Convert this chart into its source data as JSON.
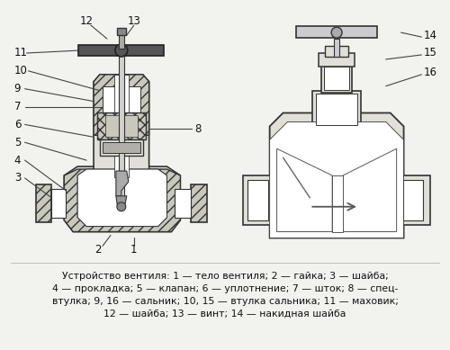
{
  "bg_color": "#f2f2ee",
  "caption_lines": [
    "Устройство вентиля: 1 — тело вентиля; 2 — гайка; 3 — шайба;",
    "4 — прокладка; 5 — клапан; 6 — уплотнение; 7 — шток; 8 — спец-",
    "втулка; 9, 16 — сальник; 10, 15 — втулка сальника; 11 — маховик;",
    "12 — шайба; 13 — винт; 14 — накидная шайба"
  ],
  "figsize": [
    5.0,
    3.89
  ],
  "dpi": 100,
  "label_color": "#111111",
  "line_color": "#444444",
  "body_ec": "#333333",
  "hatch_fc": "#c8c8bc",
  "body_fc": "#e0e0d8",
  "white": "#ffffff",
  "dark": "#555555"
}
